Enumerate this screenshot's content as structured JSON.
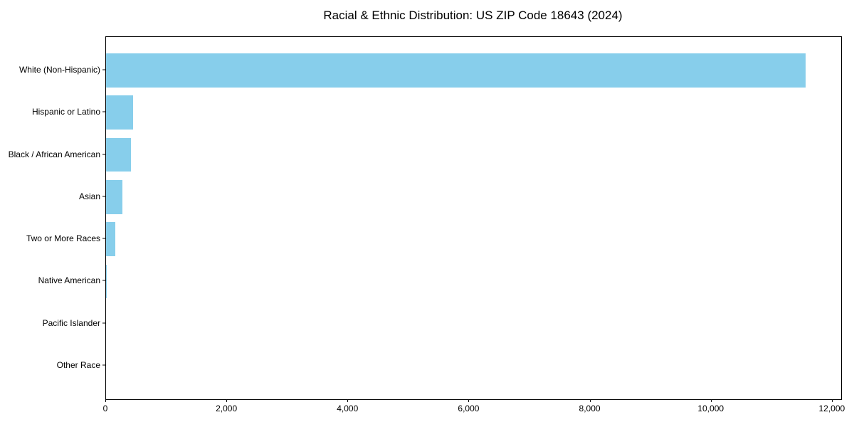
{
  "chart_data": {
    "type": "bar",
    "orientation": "horizontal",
    "title": "Racial & Ethnic Distribution: US ZIP Code 18643 (2024)",
    "categories": [
      "White (Non-Hispanic)",
      "Hispanic or Latino",
      "Black / African American",
      "Asian",
      "Two or More Races",
      "Native American",
      "Pacific Islander",
      "Other Race"
    ],
    "values": [
      11560,
      450,
      410,
      270,
      150,
      12,
      0,
      0
    ],
    "xlabel": "",
    "ylabel": "",
    "xlim": [
      0,
      12143
    ],
    "x_ticks": [
      0,
      2000,
      4000,
      6000,
      8000,
      10000,
      12000
    ],
    "x_tick_labels": [
      "0",
      "2,000",
      "4,000",
      "6,000",
      "8,000",
      "10,000",
      "12,000"
    ],
    "grid": false,
    "legend": null,
    "bar_color": "#87CEEB",
    "background_color": "#FFFFFF",
    "spine_color": "#000000",
    "text_color": "#000000"
  }
}
